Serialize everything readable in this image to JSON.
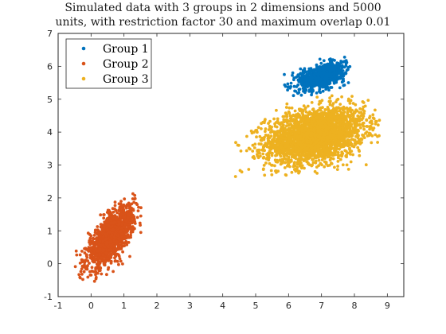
{
  "chart_data": {
    "type": "scatter",
    "title_lines": [
      "Simulated data with 3 groups in 2 dimensions and 5000",
      "units, with restriction factor 30 and maximum overlap 0.01"
    ],
    "xlabel": "",
    "ylabel": "",
    "xlim": [
      -1,
      9.5
    ],
    "ylim": [
      -1,
      7
    ],
    "x_ticks": [
      -1,
      0,
      1,
      2,
      3,
      4,
      5,
      6,
      7,
      8,
      9
    ],
    "y_ticks": [
      -1,
      0,
      1,
      2,
      3,
      4,
      5,
      6,
      7
    ],
    "grid": false,
    "legend_position": "top-left",
    "series": [
      {
        "name": "Group 1",
        "color": "#0072bd",
        "center": [
          7.0,
          5.7
        ],
        "sd": [
          0.35,
          0.2
        ],
        "corr": 0.5,
        "n": 900,
        "x_range": [
          5.8,
          8.0
        ],
        "y_range": [
          5.1,
          6.3
        ]
      },
      {
        "name": "Group 2",
        "color": "#d95319",
        "center": [
          0.6,
          0.8
        ],
        "sd": [
          0.35,
          0.45
        ],
        "corr": 0.7,
        "n": 1400,
        "x_range": [
          -0.5,
          1.6
        ],
        "y_range": [
          -0.7,
          2.2
        ]
      },
      {
        "name": "Group 3",
        "color": "#edb120",
        "center": [
          6.8,
          3.9
        ],
        "sd": [
          0.75,
          0.42
        ],
        "corr": 0.3,
        "n": 2700,
        "x_range": [
          4.3,
          8.8
        ],
        "y_range": [
          2.3,
          5.2
        ]
      }
    ]
  }
}
